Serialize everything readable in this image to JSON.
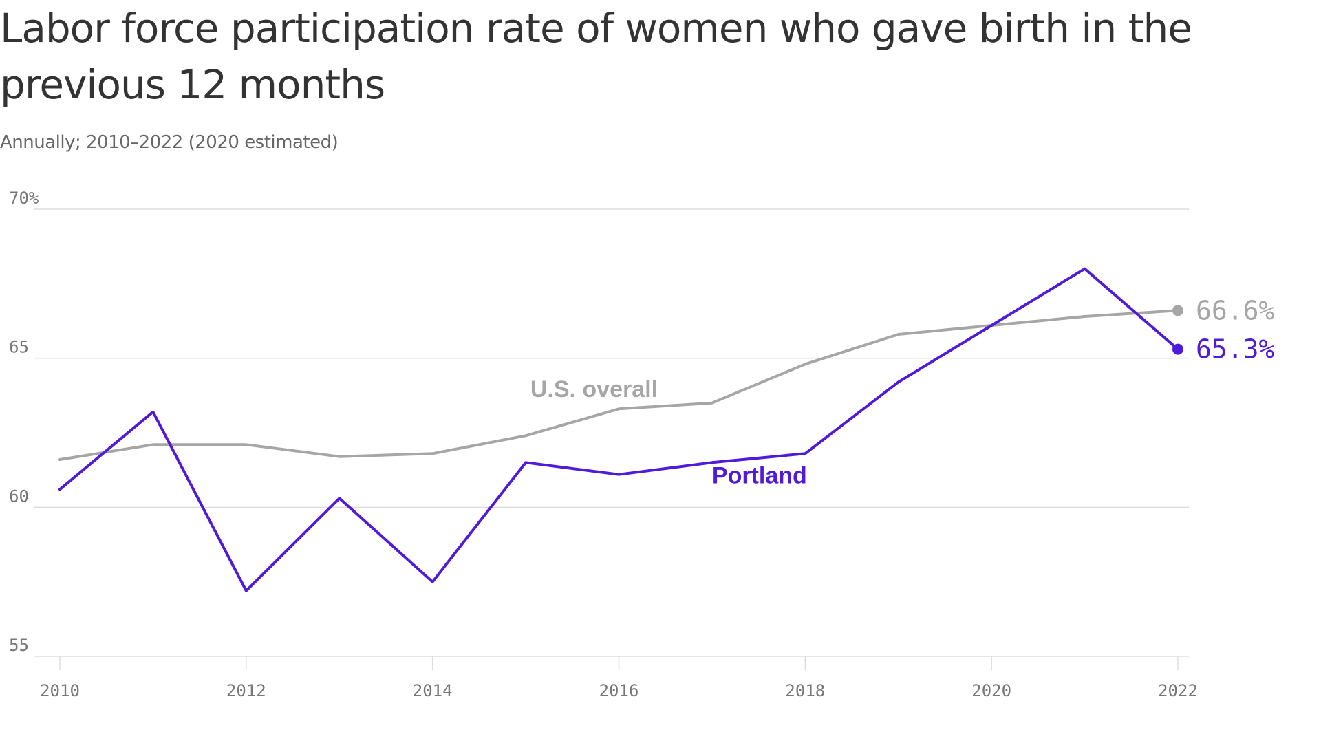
{
  "chart_data": {
    "type": "line",
    "title": "Labor force participation rate of women who gave birth in the previous 12 months",
    "subtitle": "Annually; 2010–2022 (2020 estimated)",
    "x": [
      2010,
      2011,
      2012,
      2013,
      2014,
      2015,
      2016,
      2017,
      2018,
      2019,
      2020,
      2021,
      2022
    ],
    "xticks": [
      2010,
      2012,
      2014,
      2016,
      2018,
      2020,
      2022
    ],
    "xtick_labels": [
      "2010",
      "2012",
      "2014",
      "2016",
      "2018",
      "2020",
      "2022"
    ],
    "yticks": [
      55,
      60,
      65,
      70
    ],
    "ytick_labels": [
      "55",
      "60",
      "65",
      "70%"
    ],
    "xlim": [
      2010,
      2022
    ],
    "ylim": [
      55,
      70
    ],
    "grid": true,
    "series": [
      {
        "name": "U.S. overall",
        "color": "#a6a6a6",
        "values": [
          61.6,
          62.1,
          62.1,
          61.7,
          61.8,
          62.4,
          63.3,
          63.5,
          64.8,
          65.8,
          66.1,
          66.4,
          66.6
        ],
        "end_label": "66.6%"
      },
      {
        "name": "Portland",
        "color": "#4f1ad9",
        "values": [
          60.6,
          63.2,
          57.2,
          60.3,
          57.5,
          61.5,
          61.1,
          61.5,
          61.8,
          64.2,
          66.1,
          68.0,
          65.3
        ],
        "end_label": "65.3%"
      }
    ]
  }
}
